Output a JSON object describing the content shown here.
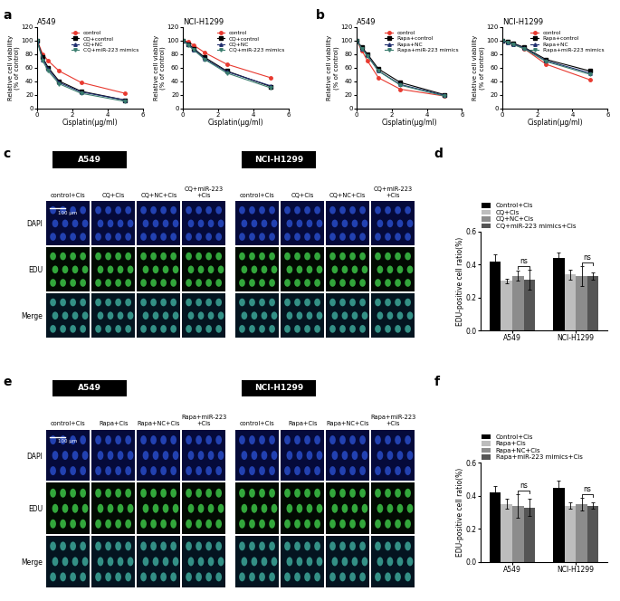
{
  "panel_labels": [
    "a",
    "b",
    "c",
    "d",
    "e",
    "f"
  ],
  "chart_data": [
    {
      "type": "line",
      "title": "A549",
      "x_label": "Cisplatin(μg/ml)",
      "y_label": "Relative cell viability\n(% of control)",
      "x": [
        0,
        0.3125,
        0.625,
        1.25,
        2.5,
        5
      ],
      "xlim": [
        0,
        6
      ],
      "xticks": [
        0,
        2,
        4,
        6
      ],
      "ylim": [
        0,
        120
      ],
      "yticks": [
        0,
        20,
        40,
        60,
        80,
        100,
        120
      ],
      "legend": "upper right",
      "series": [
        {
          "name": "control",
          "color": "#e8392f",
          "marker": "circle",
          "line_style": "solid",
          "values": [
            100,
            80,
            70,
            55,
            38,
            22
          ]
        },
        {
          "name": "CQ+control",
          "color": "#000000",
          "marker": "square",
          "line_style": "solid",
          "values": [
            100,
            75,
            60,
            40,
            25,
            12
          ]
        },
        {
          "name": "CQ+NC",
          "color": "#1f2d6e",
          "marker": "triangle_up",
          "line_style": "solid",
          "values": [
            100,
            72,
            58,
            38,
            24,
            12
          ]
        },
        {
          "name": "CQ+miR-223 mimics",
          "color": "#3a7d6e",
          "marker": "triangle_down",
          "line_style": "solid",
          "values": [
            100,
            70,
            55,
            36,
            22,
            10
          ]
        }
      ]
    },
    {
      "type": "line",
      "title": "NCI-H1299",
      "x_label": "Cisplatin(μg/ml)",
      "y_label": "Relative cell viability\n(% of control)",
      "x": [
        0,
        0.3125,
        0.625,
        1.25,
        2.5,
        5
      ],
      "xlim": [
        0,
        6
      ],
      "xticks": [
        0,
        2,
        4,
        6
      ],
      "ylim": [
        0,
        120
      ],
      "yticks": [
        0,
        20,
        40,
        60,
        80,
        100,
        120
      ],
      "legend": "upper right",
      "series": [
        {
          "name": "control",
          "color": "#e8392f",
          "marker": "circle",
          "line_style": "solid",
          "values": [
            100,
            98,
            93,
            82,
            65,
            45
          ]
        },
        {
          "name": "CQ+control",
          "color": "#000000",
          "marker": "square",
          "line_style": "solid",
          "values": [
            100,
            95,
            88,
            75,
            55,
            32
          ]
        },
        {
          "name": "CQ+NC",
          "color": "#1f2d6e",
          "marker": "triangle_up",
          "line_style": "solid",
          "values": [
            100,
            94,
            87,
            73,
            54,
            33
          ]
        },
        {
          "name": "CQ+miR-223 mimics",
          "color": "#3a7d6e",
          "marker": "triangle_down",
          "line_style": "solid",
          "values": [
            100,
            93,
            86,
            72,
            52,
            30
          ]
        }
      ]
    },
    {
      "type": "line",
      "title": "A549",
      "x_label": "Cisplatin(μg/ml)",
      "y_label": "Relative cell viability\n(% of control)",
      "x": [
        0,
        0.3125,
        0.625,
        1.25,
        2.5,
        5
      ],
      "xlim": [
        0,
        6
      ],
      "xticks": [
        0,
        2,
        4,
        6
      ],
      "ylim": [
        0,
        120
      ],
      "yticks": [
        0,
        20,
        40,
        60,
        80,
        100,
        120
      ],
      "legend": "upper right",
      "series": [
        {
          "name": "control",
          "color": "#e8392f",
          "marker": "circle",
          "line_style": "solid",
          "values": [
            100,
            85,
            70,
            45,
            28,
            18
          ]
        },
        {
          "name": "Rapa+control",
          "color": "#000000",
          "marker": "square",
          "line_style": "solid",
          "values": [
            100,
            90,
            80,
            58,
            38,
            20
          ]
        },
        {
          "name": "Rapa+NC",
          "color": "#1f2d6e",
          "marker": "triangle_up",
          "line_style": "solid",
          "values": [
            100,
            88,
            78,
            55,
            35,
            19
          ]
        },
        {
          "name": "Rapa+miR-223 mimics",
          "color": "#3a7d6e",
          "marker": "triangle_down",
          "line_style": "solid",
          "values": [
            100,
            88,
            77,
            55,
            34,
            18
          ]
        }
      ]
    },
    {
      "type": "line",
      "title": "NCI-H1299",
      "x_label": "Cisplatin(μg/ml)",
      "y_label": "Relative cell viability\n(% of control)",
      "x": [
        0,
        0.3125,
        0.625,
        1.25,
        2.5,
        5
      ],
      "xlim": [
        0,
        6
      ],
      "xticks": [
        0,
        2,
        4,
        6
      ],
      "ylim": [
        0,
        120
      ],
      "yticks": [
        0,
        20,
        40,
        60,
        80,
        100,
        120
      ],
      "legend": "upper right",
      "series": [
        {
          "name": "control",
          "color": "#e8392f",
          "marker": "circle",
          "line_style": "solid",
          "values": [
            100,
            98,
            95,
            88,
            65,
            42
          ]
        },
        {
          "name": "Rapa+control",
          "color": "#000000",
          "marker": "square",
          "line_style": "solid",
          "values": [
            100,
            98,
            96,
            90,
            72,
            55
          ]
        },
        {
          "name": "Rapa+NC",
          "color": "#1f2d6e",
          "marker": "triangle_up",
          "line_style": "solid",
          "values": [
            100,
            97,
            95,
            89,
            70,
            52
          ]
        },
        {
          "name": "Rapa+miR-223 mimics",
          "color": "#3a7d6e",
          "marker": "triangle_down",
          "line_style": "solid",
          "values": [
            100,
            97,
            94,
            88,
            69,
            50
          ]
        }
      ]
    },
    {
      "type": "bar",
      "y_label": "EDU-positive cell ratio(%)",
      "categories": [
        "A549",
        "NCI-H1299"
      ],
      "ylim": [
        0,
        0.6
      ],
      "yticks": [
        {
          "value": 0,
          "label": "0.0"
        },
        {
          "value": 0.2,
          "label": "0.2"
        },
        {
          "value": 0.4,
          "label": "0.4"
        },
        {
          "value": 0.6,
          "label": "0.6"
        }
      ],
      "legend": "above",
      "series": [
        {
          "name": "Control+Cis",
          "color": "#000000",
          "values": [
            0.42,
            0.44
          ],
          "errors": [
            0.04,
            0.03
          ]
        },
        {
          "name": "CQ+Cis",
          "color": "#bdbdbd",
          "values": [
            0.3,
            0.34
          ],
          "errors": [
            0.015,
            0.03
          ]
        },
        {
          "name": "CQ+NC+Cis",
          "color": "#8c8c8c",
          "values": [
            0.33,
            0.33
          ],
          "errors": [
            0.03,
            0.06
          ]
        },
        {
          "name": "CQ+miR-223 mimics+Cis",
          "color": "#555555",
          "values": [
            0.31,
            0.33
          ],
          "errors": [
            0.06,
            0.02
          ]
        }
      ],
      "annotations": [
        {
          "text": "ns",
          "category": "A549",
          "between": [
            "CQ+NC+Cis",
            "CQ+miR-223 mimics+Cis"
          ]
        },
        {
          "text": "ns",
          "category": "NCI-H1299",
          "between": [
            "CQ+NC+Cis",
            "CQ+miR-223 mimics+Cis"
          ]
        }
      ]
    },
    {
      "type": "bar",
      "y_label": "EDU-positive cell ratio(%)",
      "categories": [
        "A549",
        "NCI-H1299"
      ],
      "ylim": [
        0,
        0.6
      ],
      "yticks": [
        {
          "value": 0,
          "label": "0.0"
        },
        {
          "value": 0.2,
          "label": "0.2"
        },
        {
          "value": 0.4,
          "label": "0.4"
        },
        {
          "value": 0.6,
          "label": "0.6"
        }
      ],
      "legend": "above",
      "series": [
        {
          "name": "Control+Cis",
          "color": "#000000",
          "values": [
            0.42,
            0.45
          ],
          "errors": [
            0.04,
            0.04
          ]
        },
        {
          "name": "Rapa+Cis",
          "color": "#bdbdbd",
          "values": [
            0.35,
            0.34
          ],
          "errors": [
            0.03,
            0.02
          ]
        },
        {
          "name": "Rapa+NC+Cis",
          "color": "#8c8c8c",
          "values": [
            0.34,
            0.35
          ],
          "errors": [
            0.07,
            0.04
          ]
        },
        {
          "name": "Rapa+miR-223 mimics+Cis",
          "color": "#555555",
          "values": [
            0.33,
            0.34
          ],
          "errors": [
            0.05,
            0.02
          ]
        }
      ],
      "annotations": [
        {
          "text": "ns",
          "category": "A549",
          "between": [
            "Rapa+NC+Cis",
            "Rapa+miR-223 mimics+Cis"
          ]
        },
        {
          "text": "ns",
          "category": "NCI-H1299",
          "between": [
            "Rapa+NC+Cis",
            "Rapa+miR-223 mimics+Cis"
          ]
        }
      ]
    }
  ],
  "image_panels": [
    {
      "rows": [
        "DAPI",
        "EDU",
        "Merge"
      ],
      "scale_bar": "100 μm",
      "groups": [
        {
          "title": "A549",
          "columns": [
            "control+Cis",
            "CQ+Cis",
            "CQ+NC+Cis",
            "CQ+miR-223\n+Cis"
          ]
        },
        {
          "title": "NCI-H1299",
          "columns": [
            "control+Cis",
            "CQ+Cis",
            "CQ+NC+Cis",
            "CQ+miR-223\n+Cis"
          ]
        }
      ]
    },
    {
      "rows": [
        "DAPI",
        "EDU",
        "Merge"
      ],
      "scale_bar": "100 μm",
      "groups": [
        {
          "title": "A549",
          "columns": [
            "control+Cis",
            "Rapa+Cis",
            "Rapa+NC+Cis",
            "Rapa+miR-223\n+Cis"
          ]
        },
        {
          "title": "NCI-H1299",
          "columns": [
            "control+Cis",
            "Rapa+Cis",
            "Rapa+NC+Cis",
            "Rapa+miR-223\n+Cis"
          ]
        }
      ]
    }
  ]
}
